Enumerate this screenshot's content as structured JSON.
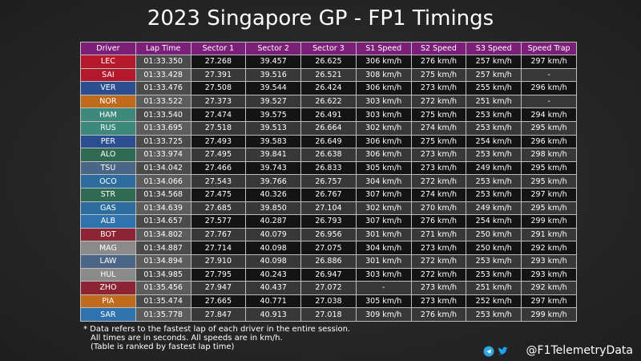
{
  "title": "2023 Singapore GP - FP1 Timings",
  "table": {
    "columns": [
      "Driver",
      "Lap Time",
      "Sector 1",
      "Sector 2",
      "Sector 3",
      "S1 Speed",
      "S2 Speed",
      "S3 Speed",
      "Speed Trap"
    ],
    "rows": [
      {
        "color": "#b3182b",
        "cells": [
          "LEC",
          "01:33.350",
          "27.268",
          "39.457",
          "26.625",
          "306 km/h",
          "276 km/h",
          "257 km/h",
          "297 km/h"
        ]
      },
      {
        "color": "#b3182b",
        "cells": [
          "SAI",
          "01:33.428",
          "27.391",
          "39.516",
          "26.521",
          "308 km/h",
          "275 km/h",
          "257 km/h",
          "-"
        ]
      },
      {
        "color": "#2a4e8f",
        "cells": [
          "VER",
          "01:33.476",
          "27.508",
          "39.544",
          "26.424",
          "306 km/h",
          "273 km/h",
          "255 km/h",
          "296 km/h"
        ]
      },
      {
        "color": "#c06a1c",
        "cells": [
          "NOR",
          "01:33.522",
          "27.373",
          "39.527",
          "26.622",
          "303 km/h",
          "272 km/h",
          "251 km/h",
          "-"
        ]
      },
      {
        "color": "#3d8a7c",
        "cells": [
          "HAM",
          "01:33.540",
          "27.474",
          "39.575",
          "26.491",
          "303 km/h",
          "275 km/h",
          "253 km/h",
          "294 km/h"
        ]
      },
      {
        "color": "#3d8a7c",
        "cells": [
          "RUS",
          "01:33.695",
          "27.518",
          "39.513",
          "26.664",
          "302 km/h",
          "274 km/h",
          "253 km/h",
          "295 km/h"
        ]
      },
      {
        "color": "#2a4e8f",
        "cells": [
          "PER",
          "01:33.725",
          "27.493",
          "39.583",
          "26.649",
          "306 km/h",
          "275 km/h",
          "254 km/h",
          "296 km/h"
        ]
      },
      {
        "color": "#2f6b52",
        "cells": [
          "ALO",
          "01:33.974",
          "27.495",
          "39.841",
          "26.638",
          "306 km/h",
          "273 km/h",
          "253 km/h",
          "298 km/h"
        ]
      },
      {
        "color": "#4a6585",
        "cells": [
          "TSU",
          "01:34.042",
          "27.466",
          "39.743",
          "26.833",
          "305 km/h",
          "273 km/h",
          "249 km/h",
          "295 km/h"
        ]
      },
      {
        "color": "#2d6d9e",
        "cells": [
          "OCO",
          "01:34.066",
          "27.543",
          "39.766",
          "26.757",
          "304 km/h",
          "272 km/h",
          "253 km/h",
          "295 km/h"
        ]
      },
      {
        "color": "#2f6b52",
        "cells": [
          "STR",
          "01:34.568",
          "27.475",
          "40.326",
          "26.767",
          "307 km/h",
          "274 km/h",
          "253 km/h",
          "297 km/h"
        ]
      },
      {
        "color": "#2d6d9e",
        "cells": [
          "GAS",
          "01:34.639",
          "27.685",
          "39.850",
          "27.104",
          "302 km/h",
          "270 km/h",
          "249 km/h",
          "295 km/h"
        ]
      },
      {
        "color": "#2f72b0",
        "cells": [
          "ALB",
          "01:34.657",
          "27.577",
          "40.287",
          "26.793",
          "307 km/h",
          "276 km/h",
          "254 km/h",
          "299 km/h"
        ]
      },
      {
        "color": "#8c2434",
        "cells": [
          "BOT",
          "01:34.802",
          "27.767",
          "40.079",
          "26.956",
          "301 km/h",
          "271 km/h",
          "250 km/h",
          "291 km/h"
        ]
      },
      {
        "color": "#8a8a8a",
        "cells": [
          "MAG",
          "01:34.887",
          "27.714",
          "40.098",
          "27.075",
          "304 km/h",
          "273 km/h",
          "250 km/h",
          "292 km/h"
        ]
      },
      {
        "color": "#4a6585",
        "cells": [
          "LAW",
          "01:34.894",
          "27.910",
          "40.098",
          "26.886",
          "301 km/h",
          "272 km/h",
          "253 km/h",
          "293 km/h"
        ]
      },
      {
        "color": "#8a8a8a",
        "cells": [
          "HUL",
          "01:34.985",
          "27.795",
          "40.243",
          "26.947",
          "303 km/h",
          "272 km/h",
          "253 km/h",
          "293 km/h"
        ]
      },
      {
        "color": "#8c2434",
        "cells": [
          "ZHO",
          "01:35.456",
          "27.947",
          "40.437",
          "27.072",
          "-",
          "273 km/h",
          "251 km/h",
          "292 km/h"
        ]
      },
      {
        "color": "#c06a1c",
        "cells": [
          "PIA",
          "01:35.474",
          "27.665",
          "40.771",
          "27.038",
          "305 km/h",
          "273 km/h",
          "252 km/h",
          "297 km/h"
        ]
      },
      {
        "color": "#2f72b0",
        "cells": [
          "SAR",
          "01:35.778",
          "27.847",
          "40.913",
          "27.018",
          "309 km/h",
          "276 km/h",
          "253 km/h",
          "299 km/h"
        ]
      }
    ]
  },
  "footnote": [
    "* Data refers to the fastest lap of each driver in the entire session.",
    "All times are in seconds. All speeds are in km/h.",
    "(Table is ranked by fastest lap time)"
  ],
  "handle": "@F1TelemetryData"
}
